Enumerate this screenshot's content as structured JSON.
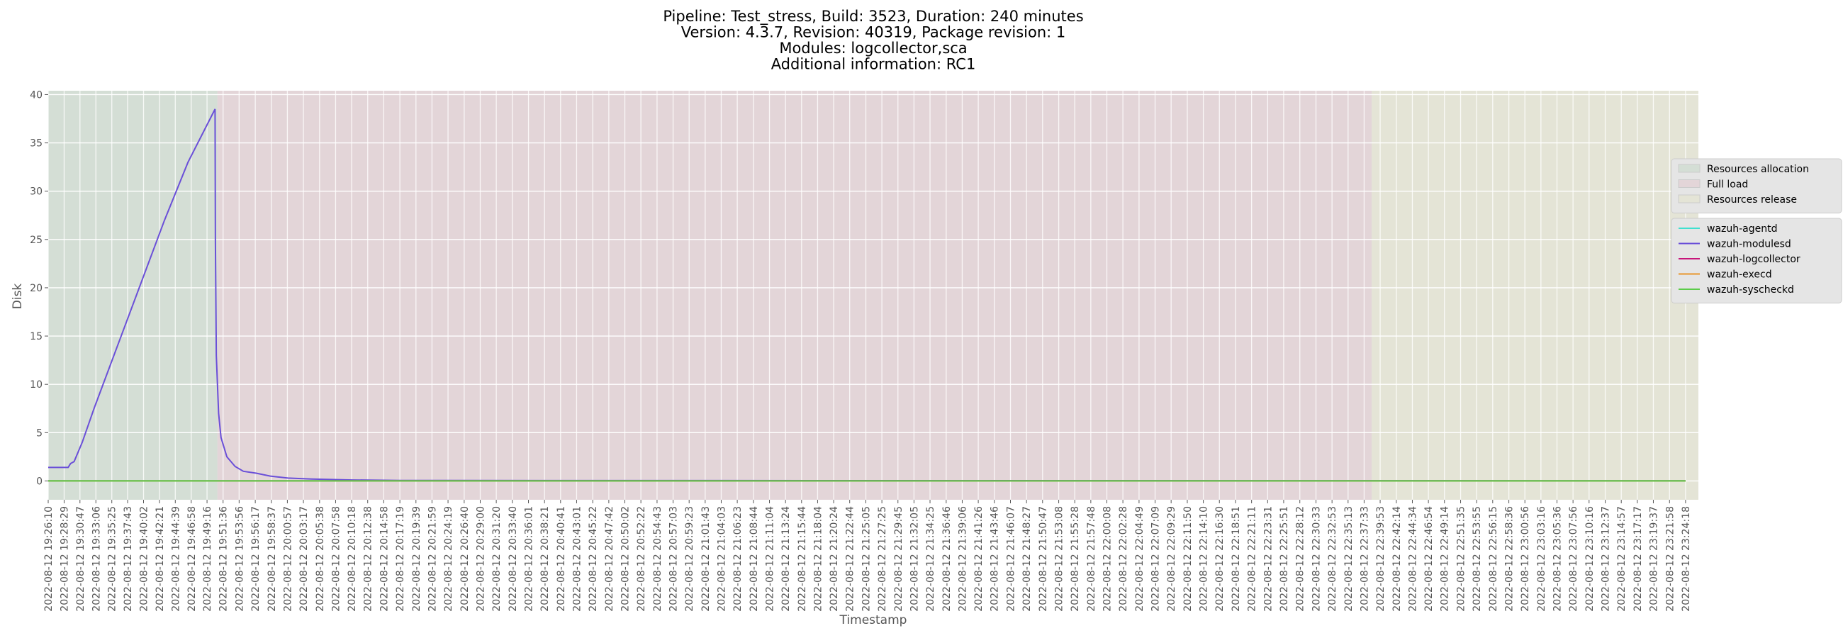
{
  "chart_data": {
    "type": "line",
    "title": [
      "Pipeline: Test_stress, Build: 3523, Duration: 240 minutes",
      "Version: 4.3.7, Revision: 40319, Package revision: 1",
      "Modules: logcollector,sca",
      "Additional information: RC1"
    ],
    "x_label": "Timestamp",
    "y_label": "Disk",
    "xlim": [
      "2022-08-12 19:26:10",
      "2022-08-12 23:26:10"
    ],
    "ylim": [
      -1.95,
      40.4
    ],
    "yticks": [
      0,
      5,
      10,
      15,
      20,
      25,
      30,
      35,
      40
    ],
    "grid": true,
    "legend": "right",
    "xticks": [
      "2022-08-12 19:26:10",
      "2022-08-12 19:28:29",
      "2022-08-12 19:30:47",
      "2022-08-12 19:33:06",
      "2022-08-12 19:35:25",
      "2022-08-12 19:37:43",
      "2022-08-12 19:40:02",
      "2022-08-12 19:42:21",
      "2022-08-12 19:44:39",
      "2022-08-12 19:46:58",
      "2022-08-12 19:49:16",
      "2022-08-12 19:51:36",
      "2022-08-12 19:53:56",
      "2022-08-12 19:56:17",
      "2022-08-12 19:58:37",
      "2022-08-12 20:00:57",
      "2022-08-12 20:03:17",
      "2022-08-12 20:05:38",
      "2022-08-12 20:07:58",
      "2022-08-12 20:10:18",
      "2022-08-12 20:12:38",
      "2022-08-12 20:14:58",
      "2022-08-12 20:17:19",
      "2022-08-12 20:19:39",
      "2022-08-12 20:21:59",
      "2022-08-12 20:24:19",
      "2022-08-12 20:26:40",
      "2022-08-12 20:29:00",
      "2022-08-12 20:31:20",
      "2022-08-12 20:33:40",
      "2022-08-12 20:36:01",
      "2022-08-12 20:38:21",
      "2022-08-12 20:40:41",
      "2022-08-12 20:43:01",
      "2022-08-12 20:45:22",
      "2022-08-12 20:47:42",
      "2022-08-12 20:50:02",
      "2022-08-12 20:52:22",
      "2022-08-12 20:54:43",
      "2022-08-12 20:57:03",
      "2022-08-12 20:59:23",
      "2022-08-12 21:01:43",
      "2022-08-12 21:04:03",
      "2022-08-12 21:06:23",
      "2022-08-12 21:08:44",
      "2022-08-12 21:11:04",
      "2022-08-12 21:13:24",
      "2022-08-12 21:15:44",
      "2022-08-12 21:18:04",
      "2022-08-12 21:20:24",
      "2022-08-12 21:22:44",
      "2022-08-12 21:25:05",
      "2022-08-12 21:27:25",
      "2022-08-12 21:29:45",
      "2022-08-12 21:32:05",
      "2022-08-12 21:34:25",
      "2022-08-12 21:36:46",
      "2022-08-12 21:39:06",
      "2022-08-12 21:41:26",
      "2022-08-12 21:43:46",
      "2022-08-12 21:46:07",
      "2022-08-12 21:48:27",
      "2022-08-12 21:50:47",
      "2022-08-12 21:53:08",
      "2022-08-12 21:55:28",
      "2022-08-12 21:57:48",
      "2022-08-12 22:00:08",
      "2022-08-12 22:02:28",
      "2022-08-12 22:04:49",
      "2022-08-12 22:07:09",
      "2022-08-12 22:09:29",
      "2022-08-12 22:11:50",
      "2022-08-12 22:14:10",
      "2022-08-12 22:16:30",
      "2022-08-12 22:18:51",
      "2022-08-12 22:21:11",
      "2022-08-12 22:23:31",
      "2022-08-12 22:25:51",
      "2022-08-12 22:28:12",
      "2022-08-12 22:30:33",
      "2022-08-12 22:32:53",
      "2022-08-12 22:35:13",
      "2022-08-12 22:37:33",
      "2022-08-12 22:39:53",
      "2022-08-12 22:42:14",
      "2022-08-12 22:44:34",
      "2022-08-12 22:46:54",
      "2022-08-12 22:49:14",
      "2022-08-12 22:51:35",
      "2022-08-12 22:53:55",
      "2022-08-12 22:56:15",
      "2022-08-12 22:58:36",
      "2022-08-12 23:00:56",
      "2022-08-12 23:03:16",
      "2022-08-12 23:05:36",
      "2022-08-12 23:07:56",
      "2022-08-12 23:10:16",
      "2022-08-12 23:12:37",
      "2022-08-12 23:14:57",
      "2022-08-12 23:17:17",
      "2022-08-12 23:19:37",
      "2022-08-12 23:21:58",
      "2022-08-12 23:24:18"
    ],
    "regions": [
      {
        "name": "Resources allocation",
        "color": "#d4ded5",
        "start": "2022-08-12 19:26:10",
        "end": "2022-08-12 19:50:47"
      },
      {
        "name": "Full load",
        "color": "#e3d5d8",
        "start": "2022-08-12 19:50:47",
        "end": "2022-08-12 22:38:39"
      },
      {
        "name": "Resources release",
        "color": "#e4e4d6",
        "start": "2022-08-12 22:38:39",
        "end": "2022-08-12 23:26:10"
      }
    ],
    "x": [
      "2022-08-12 19:26:10",
      "2022-08-12 19:29:04",
      "2022-08-12 19:29:25",
      "2022-08-12 19:29:56",
      "2022-08-12 19:31:07",
      "2022-08-12 19:32:50",
      "2022-08-12 19:36:15",
      "2022-08-12 19:39:40",
      "2022-08-12 19:43:05",
      "2022-08-12 19:46:30",
      "2022-08-12 19:50:26",
      "2022-08-12 19:50:29",
      "2022-08-12 19:50:37",
      "2022-08-12 19:50:57",
      "2022-08-12 19:51:18",
      "2022-08-12 19:52:09",
      "2022-08-12 19:53:21",
      "2022-08-12 19:54:33",
      "2022-08-12 19:56:25",
      "2022-08-12 19:58:28",
      "2022-08-12 20:01:02",
      "2022-08-12 20:04:27",
      "2022-08-12 20:10:26",
      "2022-08-12 20:17:17",
      "2022-08-12 23:24:18"
    ],
    "series": [
      {
        "name": "wazuh-agentd",
        "color": "#40e0d0",
        "values": [
          0,
          0,
          0,
          0,
          0,
          0,
          0,
          0,
          0,
          0,
          0,
          0,
          0,
          0,
          0,
          0,
          0,
          0,
          0,
          0,
          0,
          0,
          0,
          0,
          0
        ]
      },
      {
        "name": "wazuh-modulesd",
        "color": "#6a4fd8",
        "values": [
          1.4,
          1.4,
          1.8,
          2.0,
          4.0,
          7.5,
          14,
          20.5,
          27,
          33,
          38.5,
          25,
          13,
          7,
          4.5,
          2.5,
          1.5,
          1.0,
          0.8,
          0.5,
          0.3,
          0.2,
          0.1,
          0.05,
          0
        ]
      },
      {
        "name": "wazuh-logcollector",
        "color": "#c7157a",
        "values": [
          0,
          0,
          0,
          0,
          0,
          0,
          0,
          0,
          0,
          0,
          0,
          0,
          0,
          0,
          0,
          0,
          0,
          0,
          0,
          0,
          0,
          0,
          0,
          0,
          0
        ]
      },
      {
        "name": "wazuh-execd",
        "color": "#e8952a",
        "values": [
          0,
          0,
          0,
          0,
          0,
          0,
          0,
          0,
          0,
          0,
          0,
          0,
          0,
          0,
          0,
          0,
          0,
          0,
          0,
          0,
          0,
          0,
          0,
          0,
          0
        ]
      },
      {
        "name": "wazuh-syscheckd",
        "color": "#5ccc4a",
        "values": [
          0,
          0,
          0,
          0,
          0,
          0,
          0,
          0,
          0,
          0,
          0,
          0,
          0,
          0,
          0,
          0,
          0,
          0,
          0,
          0,
          0,
          0,
          0,
          0,
          0
        ]
      }
    ]
  }
}
